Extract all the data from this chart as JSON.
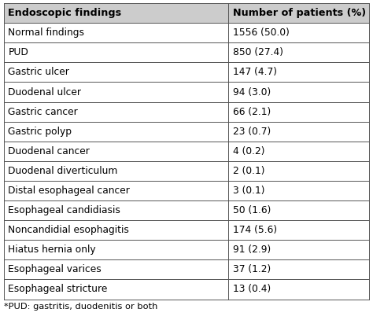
{
  "col1_header": "Endoscopic findings",
  "col2_header": "Number of patients (%)",
  "rows": [
    [
      "Normal findings",
      "1556 (50.0)"
    ],
    [
      "PUD",
      "850 (27.4)"
    ],
    [
      "Gastric ulcer",
      "147 (4.7)"
    ],
    [
      "Duodenal ulcer",
      "94 (3.0)"
    ],
    [
      "Gastric cancer",
      "66 (2.1)"
    ],
    [
      "Gastric polyp",
      "23 (0.7)"
    ],
    [
      "Duodenal cancer",
      "4 (0.2)"
    ],
    [
      "Duodenal diverticulum",
      "2 (0.1)"
    ],
    [
      "Distal esophageal cancer",
      "3 (0.1)"
    ],
    [
      "Esophageal candidiasis",
      "50 (1.6)"
    ],
    [
      "Noncandidial esophagitis",
      "174 (5.6)"
    ],
    [
      "Hiatus hernia only",
      "91 (2.9)"
    ],
    [
      "Esophageal varices",
      "37 (1.2)"
    ],
    [
      "Esophageal stricture",
      "13 (0.4)"
    ]
  ],
  "footnote": "*PUD: gastritis, duodenitis or both",
  "col_split": 0.615,
  "header_bg": "#cccccc",
  "row_bg": "#ffffff",
  "border_color": "#555555",
  "text_color": "#000000",
  "header_fontsize": 9.2,
  "row_fontsize": 8.8,
  "footnote_fontsize": 8.2,
  "fig_width": 4.74,
  "fig_height": 4.07,
  "dpi": 100
}
